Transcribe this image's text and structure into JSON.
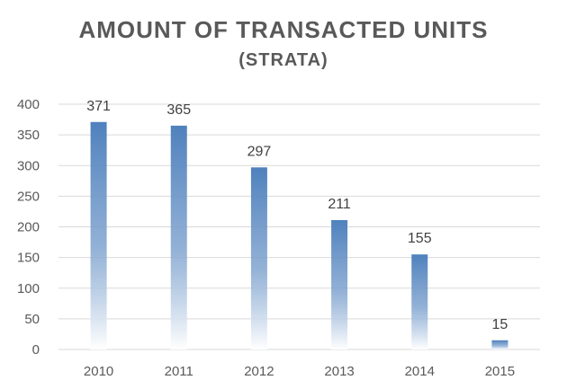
{
  "chart_data": {
    "type": "bar",
    "title": "AMOUNT OF TRANSACTED UNITS",
    "subtitle": "(STRATA)",
    "categories": [
      "2010",
      "2011",
      "2012",
      "2013",
      "2014",
      "2015"
    ],
    "values": [
      371,
      365,
      297,
      211,
      155,
      15
    ],
    "data_labels": [
      "371",
      "365",
      "297",
      "211",
      "155",
      "15"
    ],
    "yticks": [
      "0",
      "50",
      "100",
      "150",
      "200",
      "250",
      "300",
      "350",
      "400"
    ],
    "ylim": [
      0,
      400
    ],
    "xlabel": "",
    "ylabel": "",
    "grid": true,
    "bar_color": "#4F81BD"
  }
}
